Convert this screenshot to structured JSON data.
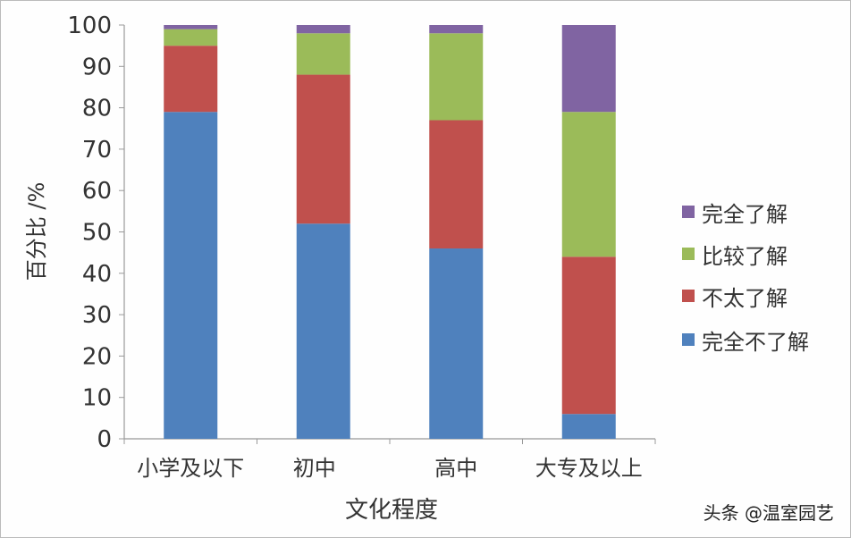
{
  "chart_data": {
    "type": "bar",
    "stacked": true,
    "categories": [
      "小学及以下",
      "初中",
      "高中",
      "大专及以上"
    ],
    "series": [
      {
        "name": "完全不了解",
        "values": [
          79,
          52,
          46,
          6
        ],
        "color": "#4f81bd"
      },
      {
        "name": "不太了解",
        "values": [
          16,
          36,
          31,
          38
        ],
        "color": "#c0504d"
      },
      {
        "name": "比较了解",
        "values": [
          4,
          10,
          21,
          35
        ],
        "color": "#9bbb59"
      },
      {
        "name": "完全了解",
        "values": [
          1,
          2,
          2,
          21
        ],
        "color": "#8064a2"
      }
    ],
    "xlabel": "文化程度",
    "ylabel": "百分比 /%",
    "ylim": [
      0,
      100
    ],
    "yticks": [
      0,
      10,
      20,
      30,
      40,
      50,
      60,
      70,
      80,
      90,
      100
    ],
    "grid": false,
    "legend": "right"
  },
  "watermark": "头条 @温室园艺"
}
